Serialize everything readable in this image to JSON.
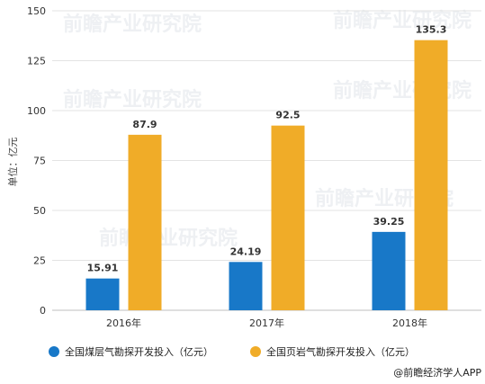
{
  "chart_data": {
    "type": "bar",
    "categories": [
      "2016年",
      "2017年",
      "2018年"
    ],
    "series": [
      {
        "name": "全国煤层气勘探开发投入（亿元）",
        "color": "#1878c8",
        "values": [
          15.91,
          24.19,
          39.25
        ],
        "labels": [
          "15.91",
          "24.19",
          "39.25"
        ]
      },
      {
        "name": "全国页岩气勘探开发投入（亿元）",
        "color": "#f0ac28",
        "values": [
          87.9,
          92.5,
          135.3
        ],
        "labels": [
          "87.9",
          "92.5",
          "135.3"
        ]
      }
    ],
    "ylabel": "单位：亿元",
    "ylim": [
      0,
      150
    ],
    "yticks": [
      0,
      25,
      50,
      75,
      100,
      125,
      150
    ],
    "grid": true,
    "legend": "bottom"
  },
  "watermark": "前瞻产业研究院",
  "source": "@前瞻经济学人APP"
}
